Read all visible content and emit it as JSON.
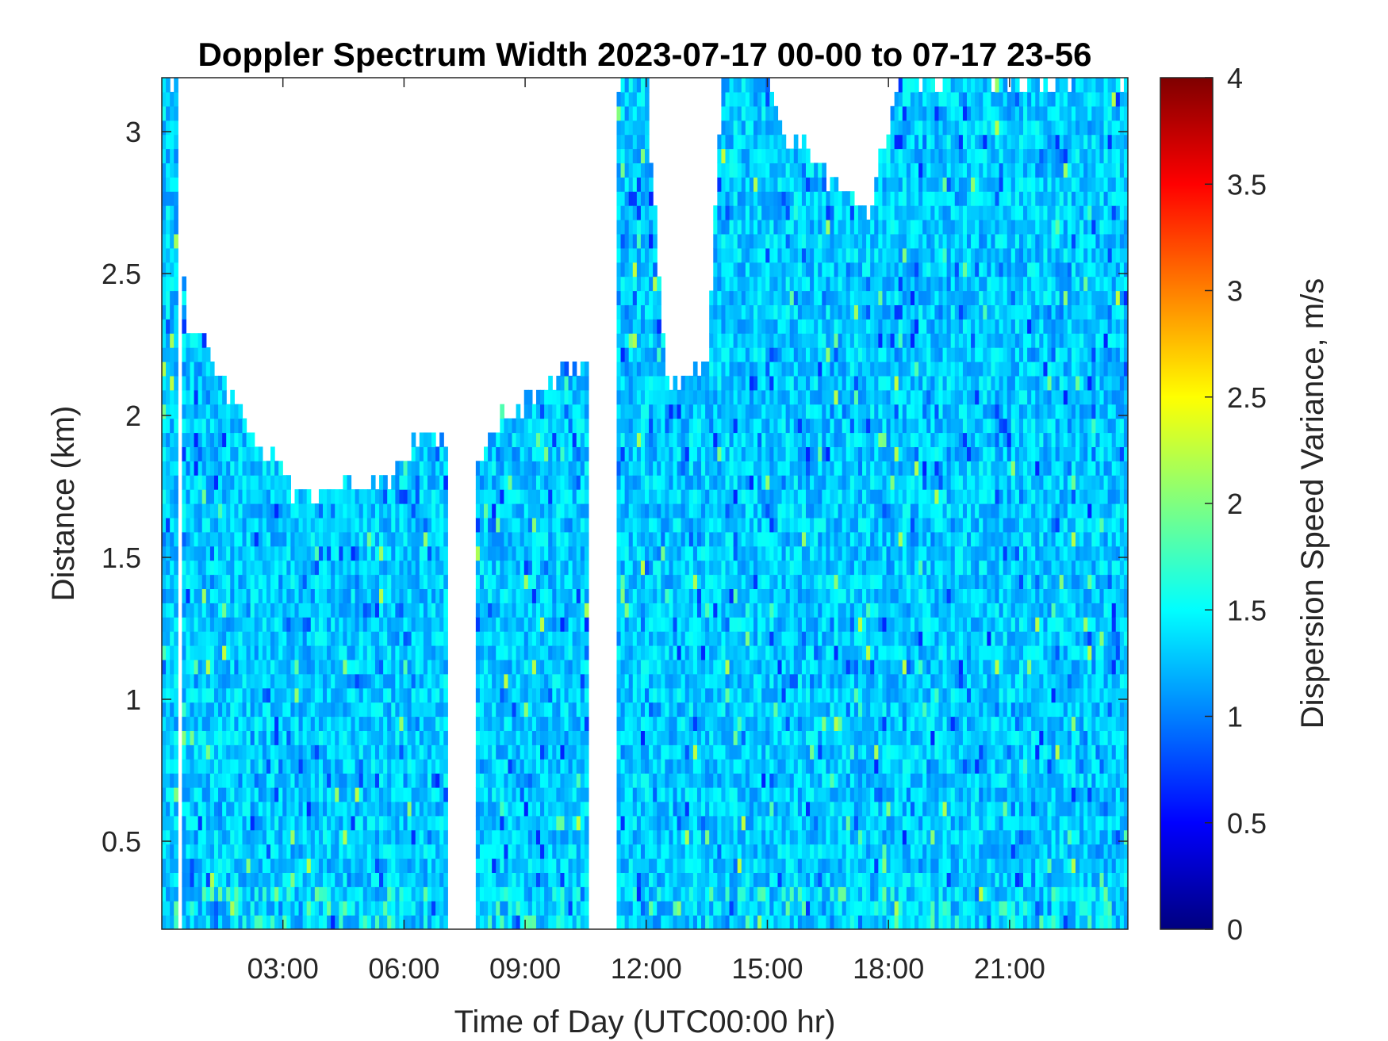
{
  "chart_data": {
    "type": "heatmap",
    "title": "Doppler Spectrum Width 2023-07-17 00-00 to 07-17 23-56",
    "xlabel": "Time of Day (UTC00:00 hr)",
    "ylabel": "Distance (km)",
    "colorbar_label": "Dispersion Speed Variance, m/s",
    "colormap": "jet",
    "x_unit": "hours",
    "xlim": [
      0,
      23.93
    ],
    "ylim": [
      0.19,
      3.19
    ],
    "clim": [
      0,
      4
    ],
    "x_ticks": [
      3,
      6,
      9,
      12,
      15,
      18,
      21
    ],
    "x_tick_labels": [
      "03:00",
      "06:00",
      "09:00",
      "12:00",
      "15:00",
      "18:00",
      "21:00"
    ],
    "y_ticks": [
      0.5,
      1,
      1.5,
      2,
      2.5,
      3
    ],
    "y_tick_labels": [
      "0.5",
      "1",
      "1.5",
      "2",
      "2.5",
      "3"
    ],
    "colorbar_ticks": [
      0,
      0.5,
      1,
      1.5,
      2,
      2.5,
      3,
      3.5,
      4
    ],
    "colorbar_tick_labels": [
      "0",
      "0.5",
      "1",
      "1.5",
      "2",
      "2.5",
      "3",
      "3.5",
      "4"
    ],
    "typical_value": 1.3,
    "data_ceiling_profile": [
      {
        "t": 0.0,
        "top": 3.19
      },
      {
        "t": 0.4,
        "top": 3.19
      },
      {
        "t": 0.6,
        "top": 2.3
      },
      {
        "t": 1.0,
        "top": 2.3
      },
      {
        "t": 1.5,
        "top": 2.1
      },
      {
        "t": 2.5,
        "top": 1.9
      },
      {
        "t": 3.5,
        "top": 1.68
      },
      {
        "t": 4.5,
        "top": 1.78
      },
      {
        "t": 5.5,
        "top": 1.75
      },
      {
        "t": 6.5,
        "top": 1.95
      },
      {
        "t": 7.0,
        "top": 1.9
      },
      {
        "t": 7.8,
        "top": 1.85
      },
      {
        "t": 8.5,
        "top": 2.0
      },
      {
        "t": 9.5,
        "top": 2.1
      },
      {
        "t": 10.5,
        "top": 2.2
      },
      {
        "t": 11.2,
        "top": 2.2
      },
      {
        "t": 11.3,
        "top": 3.19
      },
      {
        "t": 12.0,
        "top": 3.19
      },
      {
        "t": 12.5,
        "top": 2.1
      },
      {
        "t": 13.5,
        "top": 2.2
      },
      {
        "t": 13.9,
        "top": 3.19
      },
      {
        "t": 15.0,
        "top": 3.19
      },
      {
        "t": 15.5,
        "top": 3.0
      },
      {
        "t": 16.5,
        "top": 2.85
      },
      {
        "t": 17.5,
        "top": 2.7
      },
      {
        "t": 18.0,
        "top": 3.0
      },
      {
        "t": 18.3,
        "top": 3.19
      },
      {
        "t": 23.93,
        "top": 3.19
      }
    ],
    "empty_columns": [
      {
        "t_start": 0.35,
        "t_end": 0.45
      },
      {
        "t_start": 7.1,
        "t_end": 7.8
      },
      {
        "t_start": 10.6,
        "t_end": 11.25
      }
    ]
  }
}
